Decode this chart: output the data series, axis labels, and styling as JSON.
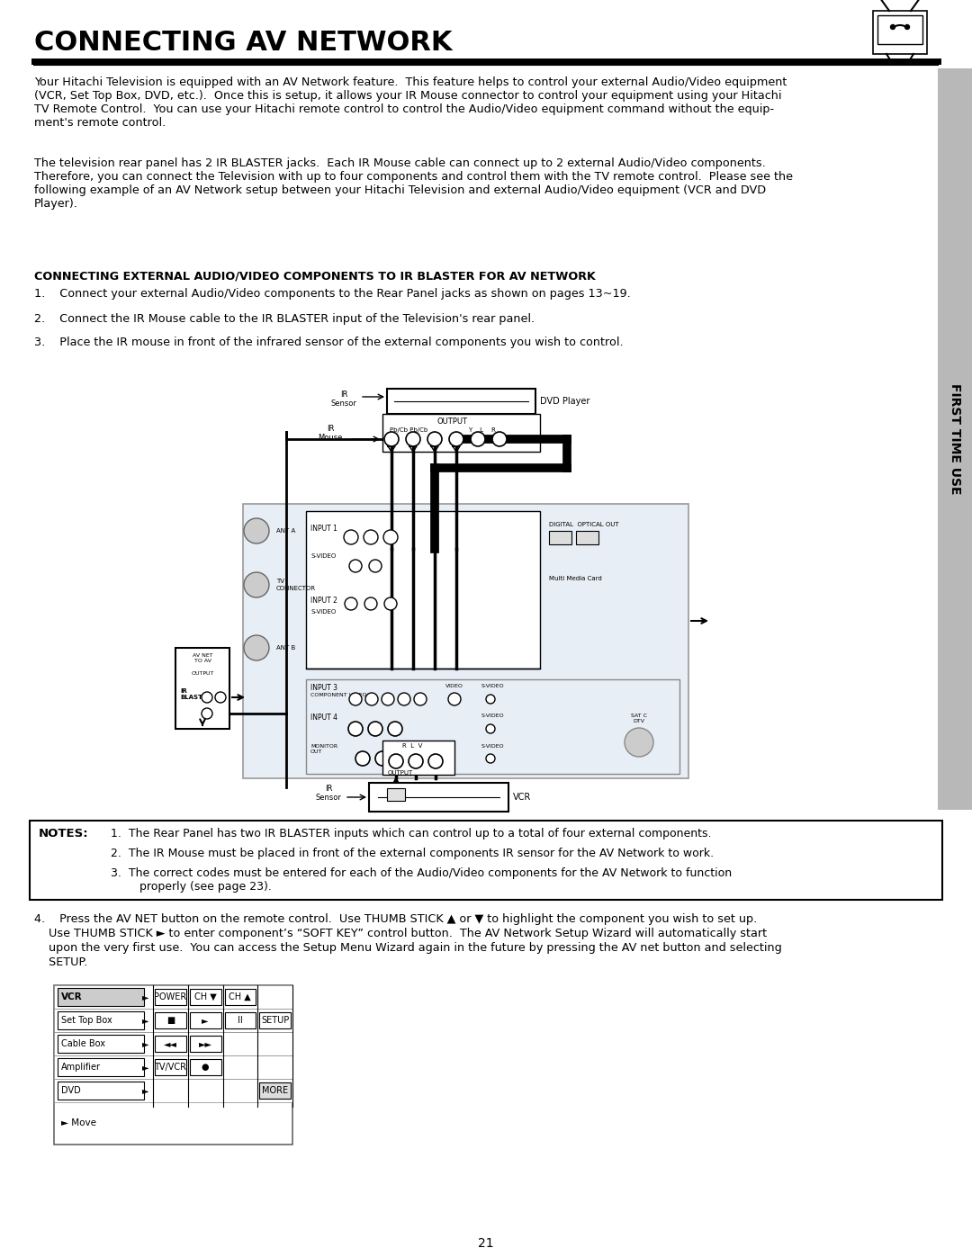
{
  "title": "CONNECTING AV NETWORK",
  "background_color": "#ffffff",
  "text_color": "#000000",
  "page_number": "21",
  "sidebar_text": "FIRST TIME USE",
  "sidebar_color": "#b8b8b8",
  "para1": "Your Hitachi Television is equipped with an AV Network feature.  This feature helps to control your external Audio/Video equipment\n(VCR, Set Top Box, DVD, etc.).  Once this is setup, it allows your IR Mouse connector to control your equipment using your Hitachi\nTV Remote Control.  You can use your Hitachi remote control to control the Audio/Video equipment command without the equip-\nment's remote control.",
  "para2": "The television rear panel has 2 IR BLASTER jacks.  Each IR Mouse cable can connect up to 2 external Audio/Video components.\nTherefore, you can connect the Television with up to four components and control them with the TV remote control.  Please see the\nfollowing example of an AV Network setup between your Hitachi Television and external Audio/Video equipment (VCR and DVD\nPlayer).",
  "subheading": "CONNECTING EXTERNAL AUDIO/VIDEO COMPONENTS TO IR BLASTER FOR AV NETWORK",
  "step1": "1.    Connect your external Audio/Video components to the Rear Panel jacks as shown on pages 13~19.",
  "step2": "2.    Connect the IR Mouse cable to the IR BLASTER input of the Television's rear panel.",
  "step3": "3.    Place the IR mouse in front of the infrared sensor of the external components you wish to control.",
  "notes_header": "NOTES:",
  "note1": "1.  The Rear Panel has two IR BLASTER inputs which can control up to a total of four external components.",
  "note2": "2.  The IR Mouse must be placed in front of the external components IR sensor for the AV Network to work.",
  "note3": "3.  The correct codes must be entered for each of the Audio/Video components for the AV Network to function\n        properly (see page 23).",
  "step4_line1": "4.    Press the AV NET button on the remote control.  Use THUMB STICK ▲ or ▼ to highlight the component you wish to set up.",
  "step4_line2": "    Use THUMB STICK ► to enter component’s “SOFT KEY” control button.  The AV Network Setup Wizard will automatically start",
  "step4_line3": "    upon the very first use.  You can access the Setup Menu Wizard again in the future by pressing the AV net button and selecting",
  "step4_line4": "    SETUP.",
  "table_rows": [
    {
      "name": "VCR",
      "selected": true,
      "cells": [
        "POWER",
        "CH ▼",
        "CH ▲",
        ""
      ]
    },
    {
      "name": "Set Top Box",
      "selected": false,
      "cells": [
        "■",
        "►",
        "II",
        "SETUP"
      ]
    },
    {
      "name": "Cable Box",
      "selected": false,
      "cells": [
        "◄◄",
        "►►",
        "",
        ""
      ]
    },
    {
      "name": "Amplifier",
      "selected": false,
      "cells": [
        "TV/VCR",
        "●",
        "",
        ""
      ]
    },
    {
      "name": "DVD",
      "selected": false,
      "cells": [
        "",
        "",
        "",
        "MORE"
      ]
    }
  ]
}
